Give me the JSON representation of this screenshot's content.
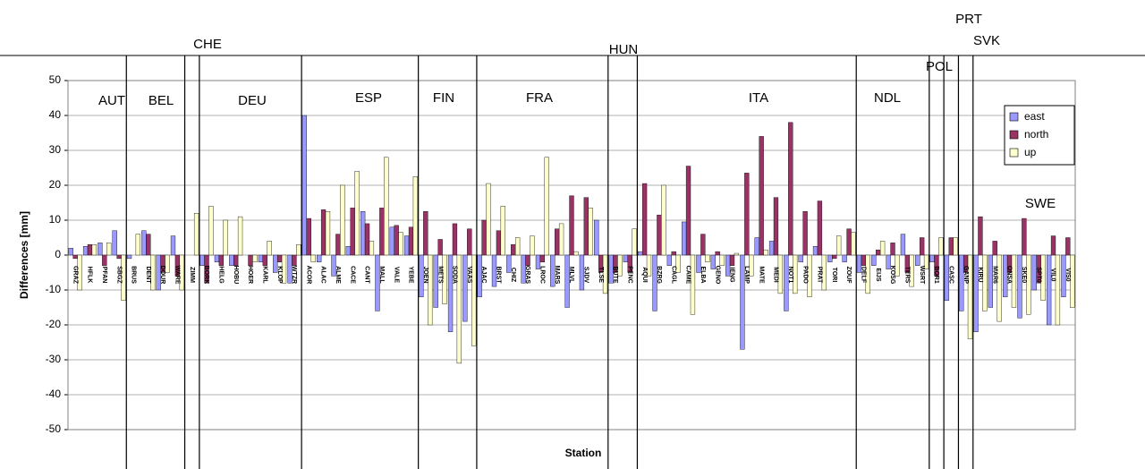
{
  "chart_data": {
    "type": "bar",
    "x_label": "Station",
    "y_label": "Differences [mm]",
    "ylim": [
      -50,
      50
    ],
    "yticks": [
      -50,
      -40,
      -30,
      -20,
      -10,
      0,
      10,
      20,
      30,
      40,
      50
    ],
    "grid": true,
    "legend": "upper right",
    "groups": [
      {
        "name": "AUT",
        "categories": [
          "GRAZ",
          "HFLK",
          "PFAN",
          "SBGZ"
        ]
      },
      {
        "name": "BEL",
        "categories": [
          "BRUS",
          "DENT",
          "DOUR",
          "WARE"
        ]
      },
      {
        "name": "CHE",
        "categories": [
          "ZIMM"
        ]
      },
      {
        "name": "DEU",
        "categories": [
          "BORK",
          "HELG",
          "HOBU",
          "HOER",
          "KARL",
          "KLOP",
          "WTZR"
        ]
      },
      {
        "name": "ESP",
        "categories": [
          "ACOR",
          "ALAC",
          "ALME",
          "CACE",
          "CANT",
          "MALL",
          "VALE",
          "YEBE"
        ]
      },
      {
        "name": "FIN",
        "categories": [
          "JOEN",
          "METS",
          "SODA",
          "VAAS"
        ]
      },
      {
        "name": "FRA",
        "categories": [
          "AJAC",
          "BRST",
          "CHIZ",
          "GRAS",
          "LROC",
          "MARS",
          "MLVL",
          "SJDV",
          "TLSE"
        ]
      },
      {
        "name": "HUN",
        "categories": [
          "BUTE",
          "PENC"
        ]
      },
      {
        "name": "ITA",
        "categories": [
          "AQUI",
          "BZRG",
          "CAGL",
          "CAME",
          "ELBA",
          "GENO",
          "IENG",
          "LAMP",
          "MATE",
          "MEDI",
          "NOT1",
          "PADO",
          "PRAT",
          "TORI",
          "ZOUF"
        ]
      },
      {
        "name": "NDL",
        "categories": [
          "DELF",
          "EIJS",
          "KOSG",
          "TERS",
          "WSRT"
        ]
      },
      {
        "name": "POL",
        "categories": [
          "BOR1"
        ]
      },
      {
        "name": "PRT",
        "categories": [
          "CASC"
        ]
      },
      {
        "name": "SVK",
        "categories": [
          "GANP"
        ]
      },
      {
        "name": "SWE",
        "categories": [
          "KIRU",
          "MAR6",
          "ONSA",
          "SKE0",
          "SPT0",
          "VIL0",
          "VIS0"
        ]
      }
    ],
    "series": [
      {
        "name": "east",
        "color": "#9999ff",
        "values": [
          2,
          2.5,
          3.5,
          7,
          -1,
          7,
          -10,
          5.5,
          0,
          -3,
          -2,
          -3,
          0,
          -2,
          -5,
          -8,
          40,
          -2,
          -6,
          2.5,
          12.5,
          -16,
          8,
          5.5,
          -12,
          -15,
          -22,
          -19,
          -12,
          -9,
          -5,
          -8,
          -4,
          -9,
          -15,
          -10,
          10,
          -8,
          -2,
          1,
          -16,
          -3,
          9.5,
          -5,
          -4,
          -6,
          -27,
          5,
          4,
          -16,
          -2,
          2.5,
          -2,
          -2,
          -5,
          -3,
          -4,
          6,
          -3,
          -2,
          -13,
          -16,
          -22,
          -15,
          -12,
          -18,
          -10,
          -20,
          -12
        ]
      },
      {
        "name": "north",
        "color": "#993366",
        "values": [
          -1,
          3,
          -3,
          -1,
          0,
          6,
          -5,
          -6,
          0,
          -8,
          -3,
          -3,
          -3,
          -3,
          -2,
          -3,
          10.5,
          13,
          6,
          13.5,
          9,
          13.5,
          8.5,
          8,
          12.5,
          4.5,
          9,
          7.5,
          10,
          7,
          3,
          -3,
          -2,
          7.5,
          17,
          16.5,
          -5,
          -5,
          -5,
          20.5,
          11.5,
          1,
          25.5,
          6,
          1,
          -3,
          23.5,
          34,
          16.5,
          38,
          12.5,
          15.5,
          -1,
          7.5,
          -3,
          1.5,
          3.5,
          -5,
          5,
          -6,
          5,
          -5,
          11,
          4,
          -5,
          10.5,
          -8,
          5.5,
          5
        ]
      },
      {
        "name": "up",
        "color": "#ffffcc",
        "values": [
          -10,
          3,
          3.5,
          -13,
          6,
          -10,
          -5,
          -10,
          12,
          14,
          10,
          11,
          -2,
          4,
          -8,
          3,
          -2,
          12.5,
          20,
          24,
          4,
          28,
          6.5,
          22.5,
          -20,
          -14,
          -31,
          -26,
          20.5,
          14,
          5,
          5.5,
          28,
          9,
          1,
          13.5,
          -11,
          -6,
          7.5,
          -6,
          20,
          -5,
          -17,
          -2,
          -3,
          0.5,
          -6,
          1.5,
          -11,
          -11,
          -12,
          -10,
          5.5,
          6.5,
          -11,
          4,
          -6,
          -9,
          -4,
          5,
          5,
          -24,
          -16,
          -19,
          -15,
          -17,
          -13,
          -20,
          -15
        ]
      }
    ]
  }
}
